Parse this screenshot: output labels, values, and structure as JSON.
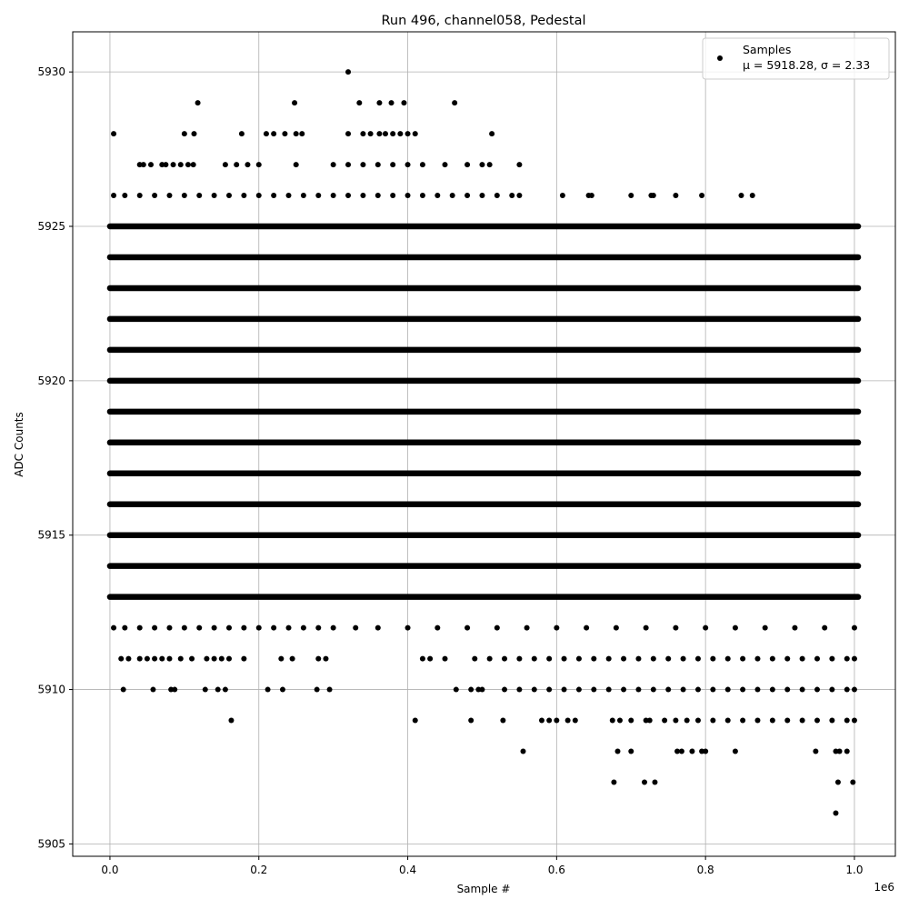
{
  "chart_data": {
    "type": "scatter",
    "title": "Run 496, channel058, Pedestal",
    "xlabel": "Sample #",
    "ylabel": "ADC Counts",
    "x_offset_text": "1e6",
    "xlim": [
      -0.05,
      1.055
    ],
    "ylim": [
      5904.6,
      5931.3
    ],
    "x_ticks": [
      0.0,
      0.2,
      0.4,
      0.6,
      0.8,
      1.0
    ],
    "x_tick_labels": [
      "0.0",
      "0.2",
      "0.4",
      "0.6",
      "0.8",
      "1.0"
    ],
    "y_ticks": [
      5905,
      5910,
      5915,
      5920,
      5925,
      5930
    ],
    "y_tick_labels": [
      "5905",
      "5910",
      "5915",
      "5920",
      "5925",
      "5930"
    ],
    "grid": true,
    "marker_color": "#000000",
    "legend": {
      "placement": "top-right",
      "entries": [
        "Samples"
      ],
      "stats_text": "μ = 5918.28, σ = 2.33"
    },
    "series": [
      {
        "name": "Samples",
        "x_range": [
          0.0,
          1.005
        ],
        "dense_levels": [
          5913,
          5914,
          5915,
          5916,
          5917,
          5918,
          5919,
          5920,
          5921,
          5922,
          5923,
          5924,
          5925
        ],
        "sparse_points": [
          {
            "y": 5930,
            "x": [
              0.32
            ]
          },
          {
            "y": 5929,
            "x": [
              0.118,
              0.248,
              0.335,
              0.362,
              0.378,
              0.395,
              0.463
            ]
          },
          {
            "y": 5928,
            "x": [
              0.005,
              0.1,
              0.113,
              0.177,
              0.21,
              0.22,
              0.235,
              0.25,
              0.258,
              0.32,
              0.34,
              0.35,
              0.362,
              0.37,
              0.38,
              0.39,
              0.4,
              0.41,
              0.513
            ]
          },
          {
            "y": 5927,
            "x": [
              0.04,
              0.045,
              0.055,
              0.07,
              0.075,
              0.085,
              0.095,
              0.105,
              0.112,
              0.155,
              0.17,
              0.185,
              0.2,
              0.25,
              0.3,
              0.32,
              0.34,
              0.36,
              0.38,
              0.4,
              0.42,
              0.45,
              0.48,
              0.5,
              0.51,
              0.55
            ]
          },
          {
            "y": 5926,
            "x": [
              0.005,
              0.02,
              0.04,
              0.06,
              0.08,
              0.1,
              0.12,
              0.14,
              0.16,
              0.18,
              0.2,
              0.22,
              0.24,
              0.26,
              0.28,
              0.3,
              0.32,
              0.34,
              0.36,
              0.38,
              0.4,
              0.42,
              0.44,
              0.46,
              0.48,
              0.5,
              0.52,
              0.54,
              0.55,
              0.608,
              0.643,
              0.647,
              0.7,
              0.727,
              0.73,
              0.76,
              0.795,
              0.848,
              0.863
            ]
          },
          {
            "y": 5912,
            "x": [
              0.005,
              0.02,
              0.04,
              0.06,
              0.08,
              0.1,
              0.12,
              0.14,
              0.16,
              0.18,
              0.2,
              0.22,
              0.24,
              0.26,
              0.28,
              0.3,
              0.33,
              0.36,
              0.4,
              0.44,
              0.48,
              0.52,
              0.56,
              0.6,
              0.64,
              0.68,
              0.72,
              0.76,
              0.8,
              0.84,
              0.88,
              0.92,
              0.96,
              1.0
            ]
          },
          {
            "y": 5911,
            "x": [
              0.015,
              0.025,
              0.04,
              0.05,
              0.06,
              0.07,
              0.08,
              0.095,
              0.11,
              0.13,
              0.14,
              0.15,
              0.16,
              0.18,
              0.23,
              0.245,
              0.28,
              0.29,
              0.42,
              0.43,
              0.45,
              0.49,
              0.51,
              0.53,
              0.55,
              0.57,
              0.59,
              0.61,
              0.63,
              0.65,
              0.67,
              0.69,
              0.71,
              0.73,
              0.75,
              0.77,
              0.79,
              0.81,
              0.83,
              0.85,
              0.87,
              0.89,
              0.91,
              0.93,
              0.95,
              0.97,
              0.99,
              1.0
            ]
          },
          {
            "y": 5910,
            "x": [
              0.018,
              0.058,
              0.082,
              0.087,
              0.128,
              0.145,
              0.155,
              0.212,
              0.232,
              0.278,
              0.295,
              0.465,
              0.485,
              0.495,
              0.5,
              0.53,
              0.55,
              0.57,
              0.59,
              0.61,
              0.63,
              0.65,
              0.67,
              0.69,
              0.71,
              0.73,
              0.75,
              0.77,
              0.79,
              0.81,
              0.83,
              0.85,
              0.87,
              0.89,
              0.91,
              0.93,
              0.95,
              0.97,
              0.99,
              1.0
            ]
          },
          {
            "y": 5909,
            "x": [
              0.163,
              0.41,
              0.485,
              0.528,
              0.58,
              0.59,
              0.6,
              0.615,
              0.625,
              0.675,
              0.685,
              0.7,
              0.72,
              0.725,
              0.745,
              0.76,
              0.775,
              0.79,
              0.81,
              0.83,
              0.85,
              0.87,
              0.89,
              0.91,
              0.93,
              0.95,
              0.97,
              0.99,
              1.0
            ]
          },
          {
            "y": 5908,
            "x": [
              0.555,
              0.682,
              0.7,
              0.762,
              0.768,
              0.782,
              0.795,
              0.8,
              0.84,
              0.948,
              0.975,
              0.98,
              0.99
            ]
          },
          {
            "y": 5907,
            "x": [
              0.677,
              0.718,
              0.732,
              0.978,
              0.998
            ]
          },
          {
            "y": 5906,
            "x": [
              0.975
            ]
          }
        ]
      }
    ]
  }
}
